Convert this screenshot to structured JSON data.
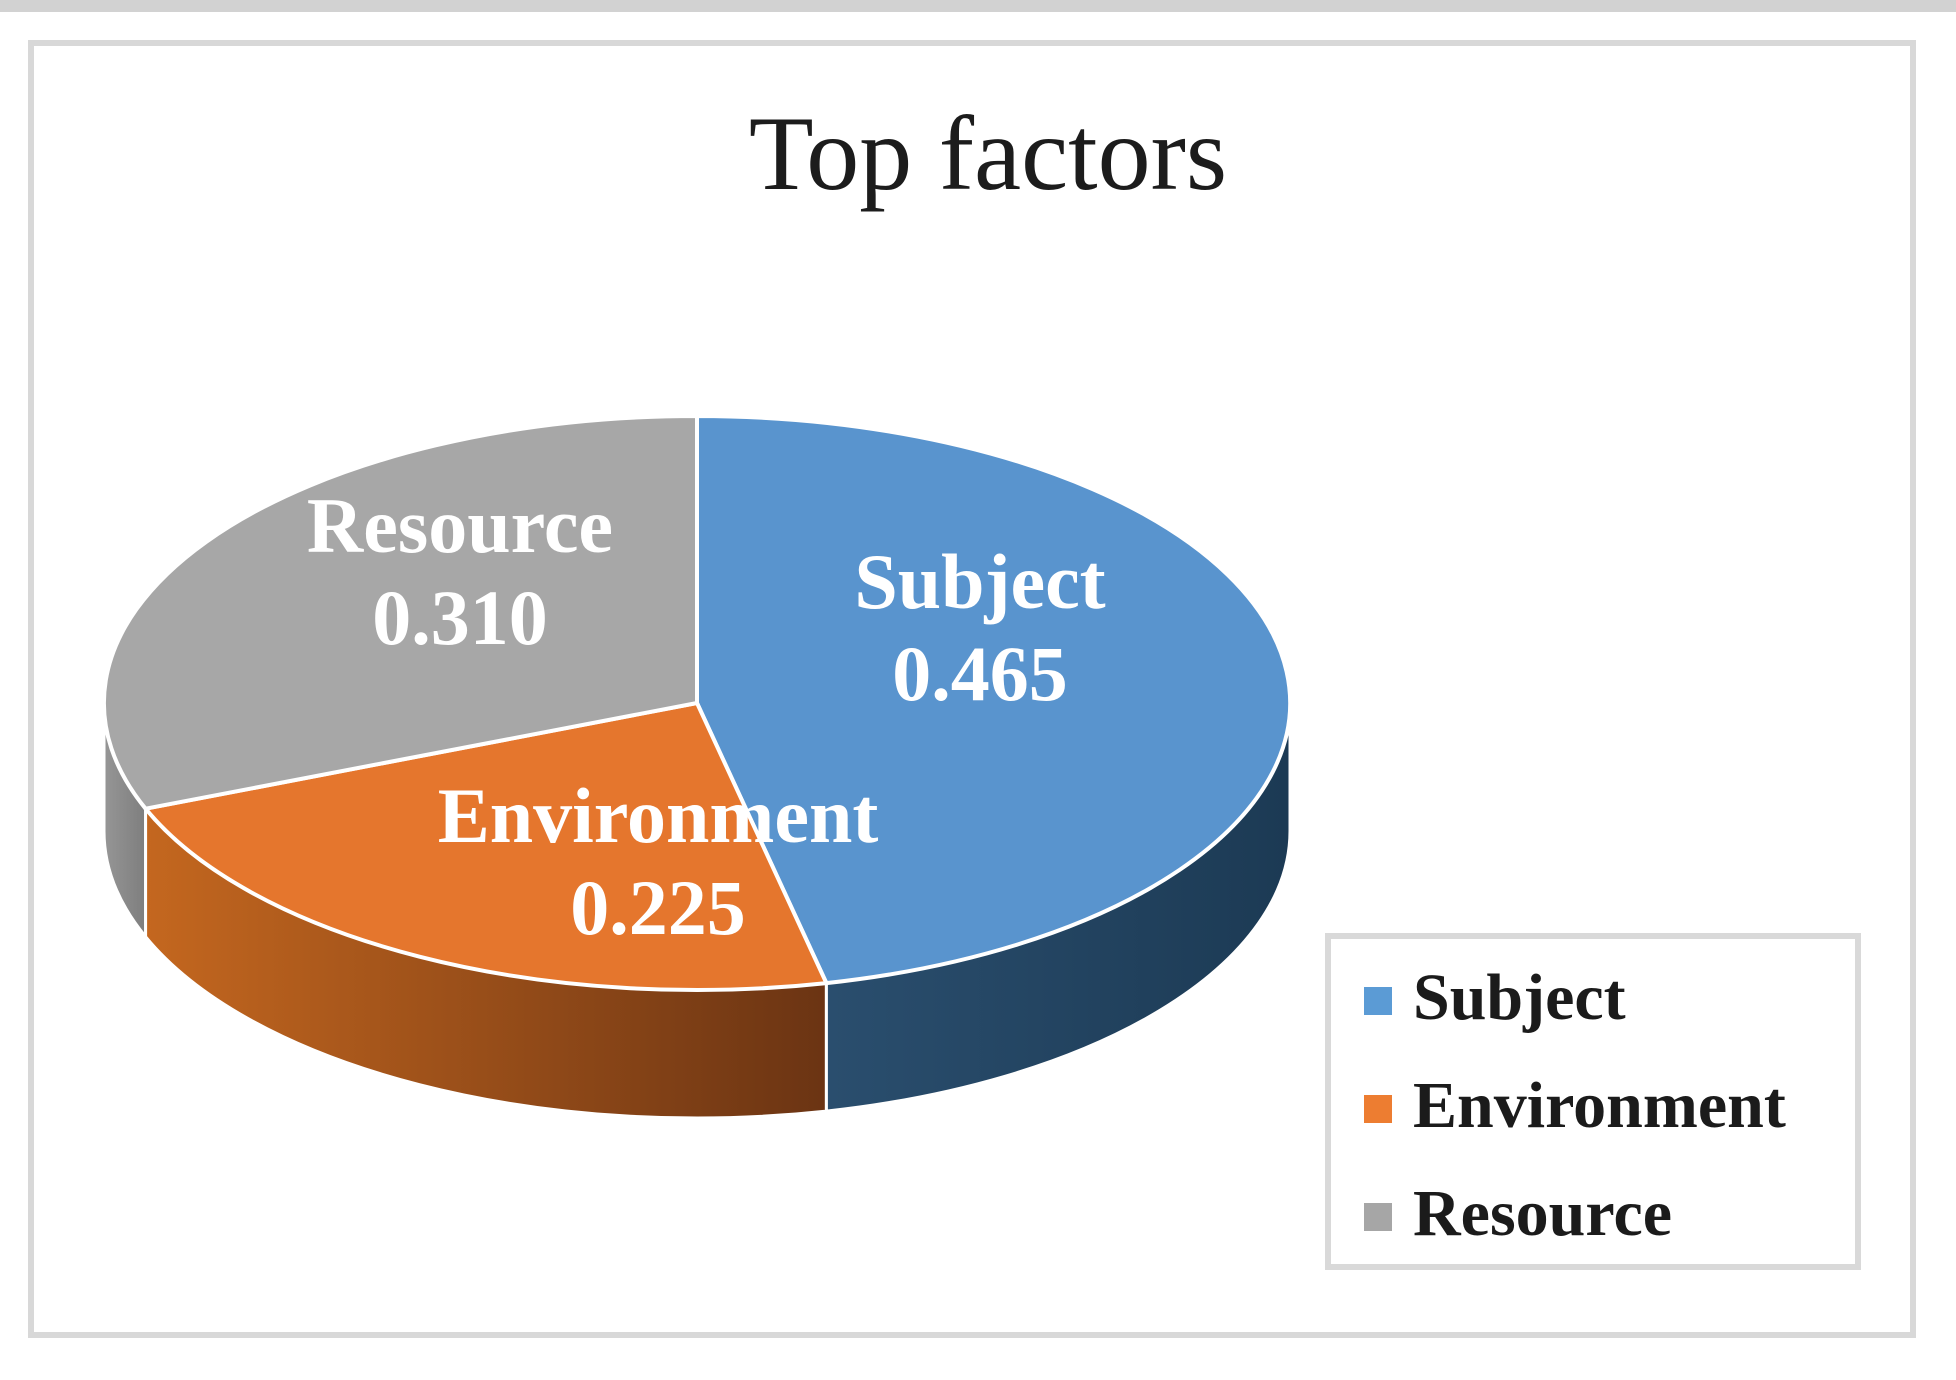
{
  "title": "Top factors",
  "frame": {
    "border_color": "#d8d8d8",
    "top_strip_color": "#d2d2d2",
    "background": "#ffffff"
  },
  "chart_data": {
    "type": "pie",
    "style": "3d",
    "title": "Top factors",
    "start_angle_deg": 0,
    "direction": "clockwise",
    "legend_position": "bottom-right",
    "categories": [
      "Subject",
      "Environment",
      "Resource"
    ],
    "values": [
      0.465,
      0.225,
      0.31
    ],
    "slices": [
      {
        "label": "Subject",
        "value": 0.465,
        "display_value": "0.465",
        "color": "#5994CE",
        "side_color_light": "#2A4E6E",
        "side_color_dark": "#1C3A54",
        "label_color": "#ffffff"
      },
      {
        "label": "Environment",
        "value": 0.225,
        "display_value": "0.225",
        "color": "#E5762D",
        "side_color_light": "#C4671F",
        "side_color_dark": "#6B3413",
        "label_color": "#ffffff"
      },
      {
        "label": "Resource",
        "value": 0.31,
        "display_value": "0.310",
        "color": "#A7A7A7",
        "side_color_light": "#969696",
        "side_color_dark": "#7E7E7E",
        "label_color": "#ffffff"
      }
    ]
  },
  "legend": {
    "border_color": "#d9d9d9",
    "items": [
      {
        "label": "Subject",
        "color": "#5B9BD5"
      },
      {
        "label": "Environment",
        "color": "#ED7D31"
      },
      {
        "label": "Resource",
        "color": "#A6A6A6"
      }
    ]
  }
}
